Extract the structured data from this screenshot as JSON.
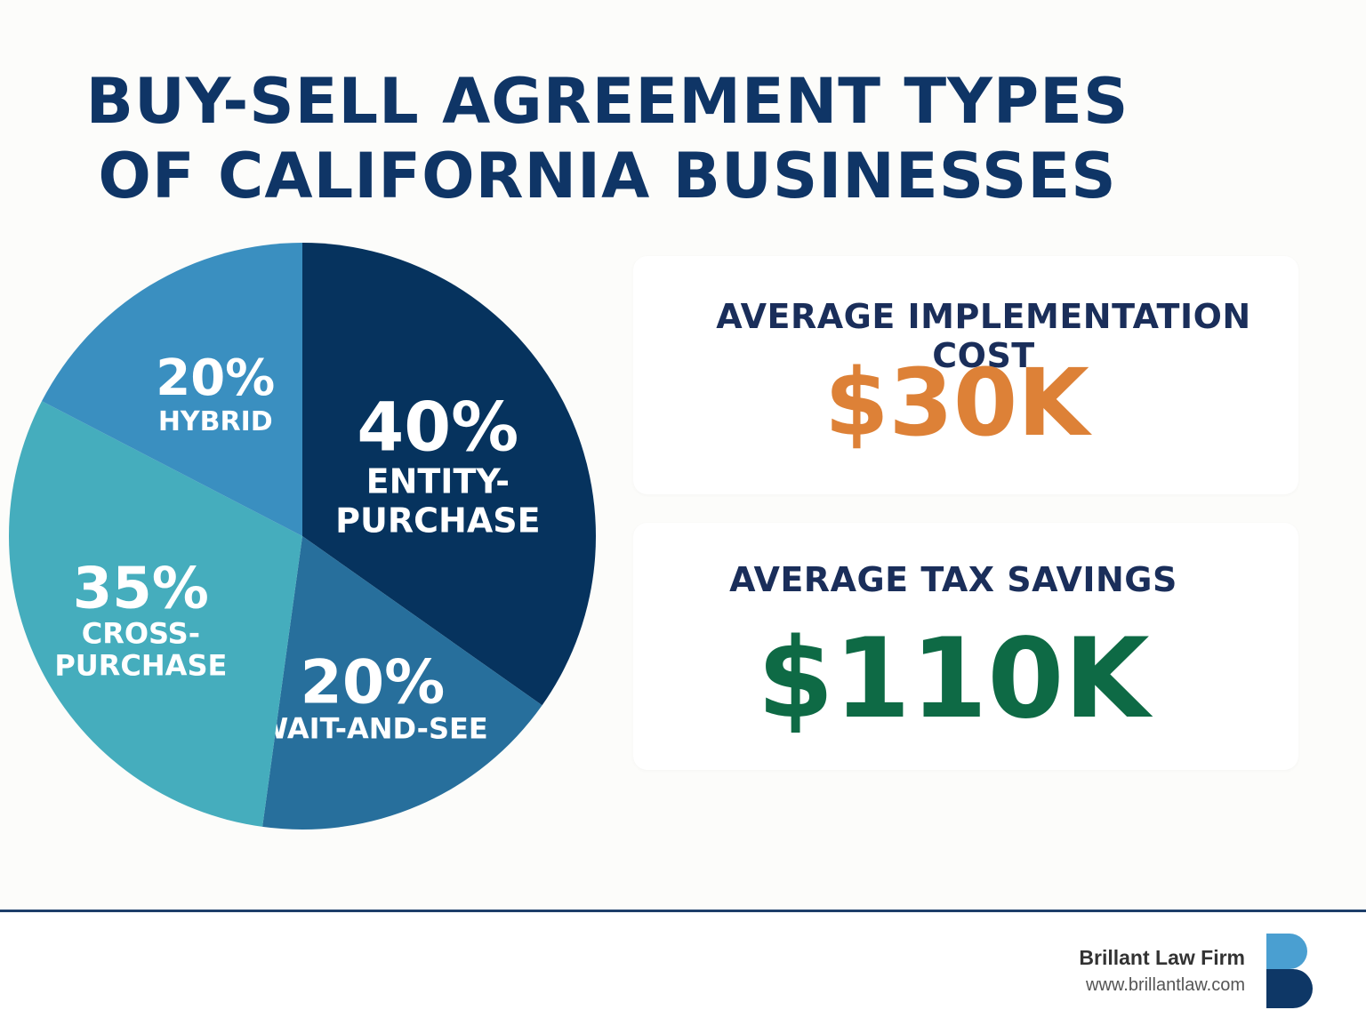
{
  "title": {
    "line1": "BUY-SELL AGREEMENT TYPES",
    "line2": "OF CALIFORNIA BUSINESSES"
  },
  "chart_data": {
    "type": "pie",
    "slices": [
      {
        "label_lines": [
          "ENTITY-",
          "PURCHASE"
        ],
        "value": 40,
        "value_label": "40%",
        "color": "#06335e"
      },
      {
        "label_lines": [
          "WAIT-AND-SEE"
        ],
        "value": 20,
        "value_label": "20%",
        "color": "#276f9c"
      },
      {
        "label_lines": [
          "CROSS-",
          "PURCHASE"
        ],
        "value": 35,
        "value_label": "35%",
        "color": "#45adbd"
      },
      {
        "label_lines": [
          "HYBRID"
        ],
        "value": 20,
        "value_label": "20%",
        "color": "#3a8fc0"
      }
    ]
  },
  "stats": {
    "implementation": {
      "label": "AVERAGE IMPLEMENTATION COST",
      "value": "$30K",
      "color": "#dd8137"
    },
    "tax_savings": {
      "label": "AVERAGE TAX SAVINGS",
      "value": "$110K",
      "color": "#0e6a45"
    }
  },
  "footer": {
    "firm_name": "Brillant Law Firm",
    "website": "www.brillantlaw.com"
  },
  "colors": {
    "title": "#0f3566",
    "divider": "#1d3e69",
    "logo_top": "#4a9fd1",
    "logo_bottom": "#0e3766"
  },
  "logo": {
    "icon": "letter-b-logo-icon"
  }
}
